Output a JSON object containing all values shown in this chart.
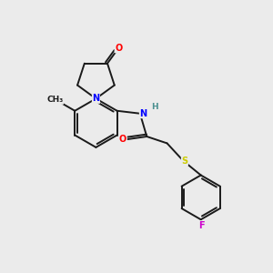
{
  "background_color": "#ebebeb",
  "bond_color": "#1a1a1a",
  "atom_colors": {
    "N": "#0000ff",
    "O": "#ff0000",
    "S": "#cccc00",
    "F": "#cc00cc",
    "H": "#4a9090",
    "C": "#1a1a1a"
  },
  "figsize": [
    3.0,
    3.0
  ],
  "dpi": 100
}
